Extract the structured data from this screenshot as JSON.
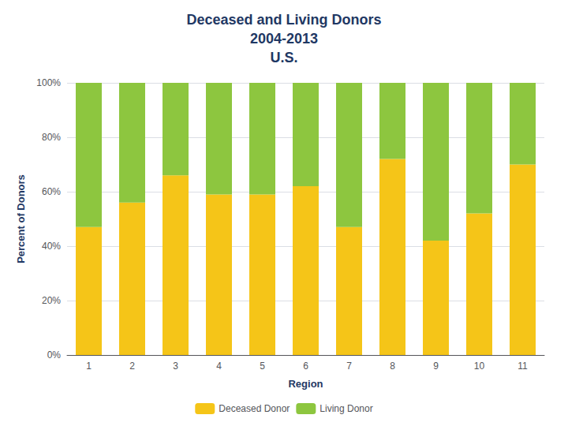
{
  "chart_data": {
    "type": "bar",
    "stacked": true,
    "title": "Deceased and Living Donors\n2004-2013\nU.S.",
    "x_label": "Region",
    "y_label": "Percent of Donors",
    "categories": [
      1,
      2,
      3,
      4,
      5,
      6,
      7,
      8,
      9,
      10,
      11
    ],
    "series": [
      {
        "name": "Deceased Donor",
        "color": "#F5C518",
        "values": [
          47,
          56,
          66,
          59,
          59,
          62,
          47,
          72,
          42,
          52,
          70
        ]
      },
      {
        "name": "Living Donor",
        "color": "#8DC63F",
        "values": [
          53,
          44,
          34,
          41,
          41,
          38,
          53,
          28,
          58,
          48,
          30
        ]
      }
    ],
    "ylim": [
      0,
      100
    ],
    "yticks": [
      {
        "value": 0,
        "label": "0%"
      },
      {
        "value": 20,
        "label": "20%"
      },
      {
        "value": 40,
        "label": "40%"
      },
      {
        "value": 60,
        "label": "60%"
      },
      {
        "value": 80,
        "label": "80%"
      },
      {
        "value": 100,
        "label": "100%"
      }
    ],
    "grid": true,
    "legend": "bottom"
  }
}
